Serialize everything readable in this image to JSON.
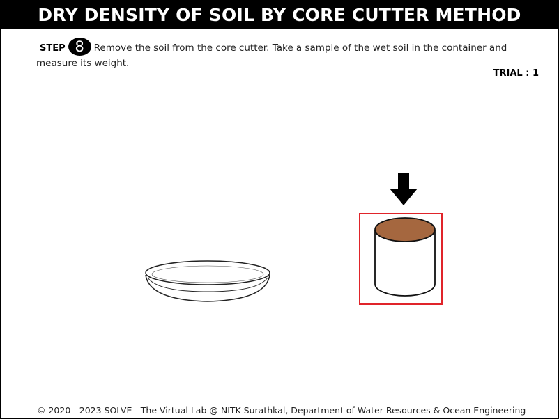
{
  "header": {
    "title": "DRY DENSITY OF SOIL BY CORE CUTTER METHOD"
  },
  "step": {
    "label": "STEP",
    "number": "8",
    "instruction": "Remove the soil from the core cutter. Take a sample of the wet soil in the container and measure its weight."
  },
  "trial": {
    "text": "TRIAL : 1"
  },
  "apparatus": {
    "dish_icon": "petri-dish-icon",
    "arrow_icon": "down-arrow-icon",
    "core_cutter_icon": "core-cutter-icon",
    "soil_color": "#a5673f",
    "highlight_color": "#e0242a"
  },
  "footer": {
    "copyright": "© 2020 - 2023 SOLVE - The Virtual Lab @ NITK Surathkal, Department of Water Resources & Ocean Engineering"
  }
}
